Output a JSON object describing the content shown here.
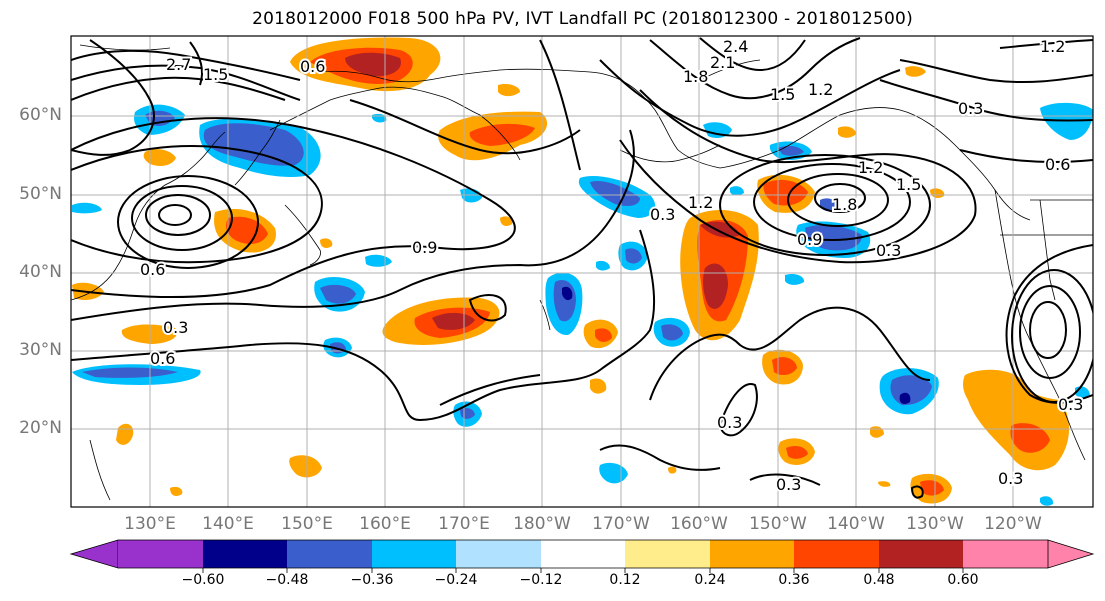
{
  "title": "2018012000 F018 500 hPa PV, IVT Landfall PC (2018012300 - 2018012500)",
  "lat_labels": [
    "60°N",
    "50°N",
    "40°N",
    "30°N",
    "20°N"
  ],
  "lon_labels": [
    "130°E",
    "140°E",
    "150°E",
    "160°E",
    "170°E",
    "180°W",
    "170°W",
    "160°W",
    "150°W",
    "140°W",
    "130°W",
    "120°W"
  ],
  "contour_labels": [
    "0.6",
    "2.4",
    "2.1",
    "1.2",
    "2.7",
    "1.5",
    "1.8",
    "1.2",
    "1.5",
    "0.3",
    "0.6",
    "1.2",
    "1.5",
    "1.8",
    "1.2",
    "0.3",
    "0.9",
    "0.9",
    "0.3",
    "0.6",
    "0.3",
    "0.6",
    "0.3",
    "0.3",
    "0.3",
    "0.3"
  ],
  "colorbar": {
    "ticks": [
      "−0.60",
      "−0.48",
      "−0.36",
      "−0.24",
      "−0.12",
      "0.12",
      "0.24",
      "0.36",
      "0.48",
      "0.60"
    ],
    "colors": [
      "#9932cc",
      "#00008b",
      "#3a5fcd",
      "#00bfff",
      "#b0e2ff",
      "#ffffff",
      "#ffec8b",
      "#ffa500",
      "#ff4500",
      "#b22222",
      "#ff82ab"
    ]
  },
  "palette": {
    "neg_strong": "#3a5fcd",
    "neg_mid": "#00bfff",
    "neg_weak": "#b0e2ff",
    "pos_weak": "#ffec8b",
    "pos_mid": "#ffa500",
    "pos_strong": "#ff4500",
    "pos_max": "#b22222",
    "neg_max": "#00008b"
  }
}
